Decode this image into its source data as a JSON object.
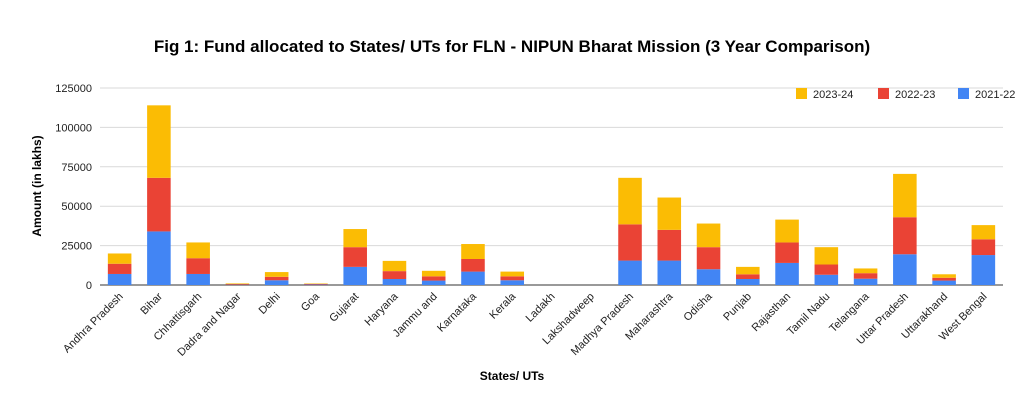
{
  "chart_data": {
    "type": "bar",
    "stacked": true,
    "title": "Fig 1: Fund allocated to States/ UTs for FLN - NIPUN Bharat Mission (3 Year Comparison)",
    "xlabel": "States/ UTs",
    "ylabel": "Amount (in lakhs)",
    "ylim": [
      0,
      125000
    ],
    "yticks": [
      "0",
      "25000",
      "50000",
      "75000",
      "100000",
      "125000"
    ],
    "grid": true,
    "legend_position": "top-right",
    "categories": [
      "Andhra Pradesh",
      "Bihar",
      "Chhattisgarh",
      "Dadra and Nagar",
      "Delhi",
      "Goa",
      "Gujarat",
      "Haryana",
      "Jammu and",
      "Karnataka",
      "Kerala",
      "Ladakh",
      "Lakshadweep",
      "Madhya Pradesh",
      "Maharashtra",
      "Odisha",
      "Punjab",
      "Rajasthan",
      "Tamil Nadu",
      "Telangana",
      "Uttar Pradesh",
      "Uttarakhand",
      "West Bengal"
    ],
    "series": [
      {
        "name": "2021-22",
        "color": "#4285f4",
        "values": [
          7000,
          34000,
          7000,
          200,
          3000,
          300,
          11500,
          3800,
          2800,
          8500,
          3000,
          0,
          0,
          15500,
          15500,
          10000,
          3800,
          14000,
          6500,
          4000,
          19500,
          2800,
          19000
        ]
      },
      {
        "name": "2022-23",
        "color": "#ea4335",
        "values": [
          6500,
          34000,
          10000,
          400,
          2200,
          400,
          12500,
          5000,
          2700,
          8000,
          2500,
          0,
          0,
          23000,
          19500,
          14000,
          3000,
          13000,
          6500,
          3500,
          23500,
          1800,
          10000
        ]
      },
      {
        "name": "2023-24",
        "color": "#fbbc04",
        "values": [
          6500,
          46000,
          10000,
          400,
          3000,
          300,
          11500,
          6500,
          3500,
          9500,
          3000,
          0,
          0,
          29500,
          20500,
          15000,
          4700,
          14500,
          11000,
          3000,
          27500,
          2200,
          9000
        ]
      }
    ],
    "legend_order": [
      "2023-24",
      "2022-23",
      "2021-22"
    ]
  }
}
